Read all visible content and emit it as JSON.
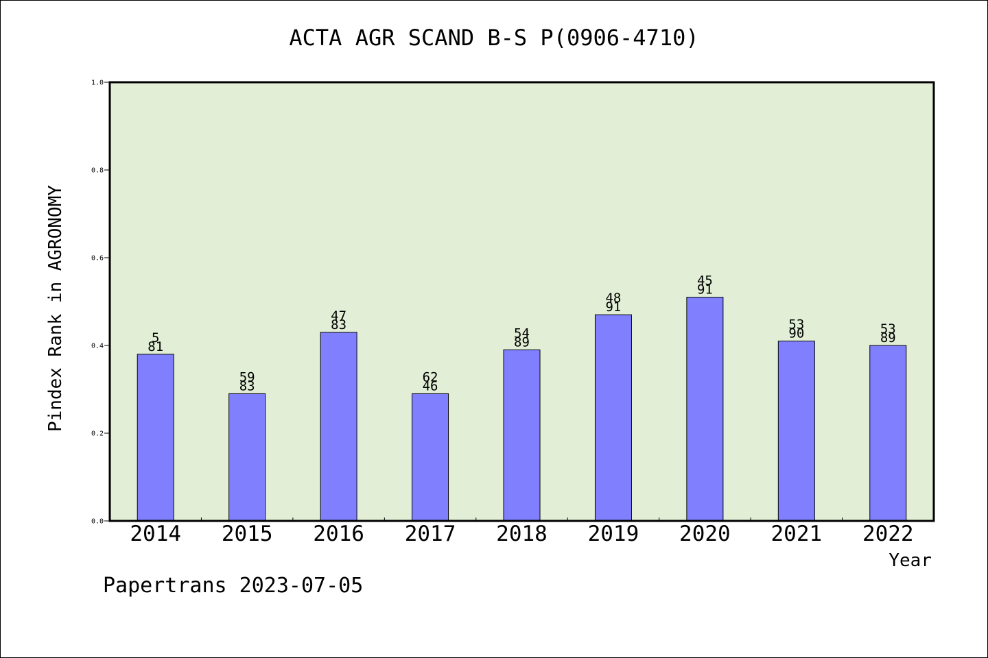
{
  "chart_data": {
    "type": "bar",
    "title": "ACTA AGR SCAND B-S P(0906-4710)",
    "xlabel": "Year",
    "ylabel": "Pindex Rank in AGRONOMY",
    "ylim": [
      0,
      1.0
    ],
    "yticks": [
      "0.0",
      "0.2",
      "0.4",
      "0.6",
      "0.8",
      "1.0"
    ],
    "categories": [
      "2014",
      "2015",
      "2016",
      "2017",
      "2018",
      "2019",
      "2020",
      "2021",
      "2022"
    ],
    "values": [
      0.38,
      0.29,
      0.43,
      0.29,
      0.39,
      0.47,
      0.51,
      0.41,
      0.4
    ],
    "labels_top": [
      "5",
      "59",
      "47",
      "62",
      "54",
      "48",
      "45",
      "53",
      "53"
    ],
    "labels_bottom": [
      "81",
      "83",
      "83",
      "46",
      "89",
      "91",
      "91",
      "90",
      "89"
    ],
    "grid": false,
    "colors": {
      "plot_background": "#e2efd6",
      "bar_fill": "#8080ff",
      "bar_stroke": "#000000"
    }
  },
  "footer": {
    "credit": "Papertrans 2023-07-05"
  }
}
